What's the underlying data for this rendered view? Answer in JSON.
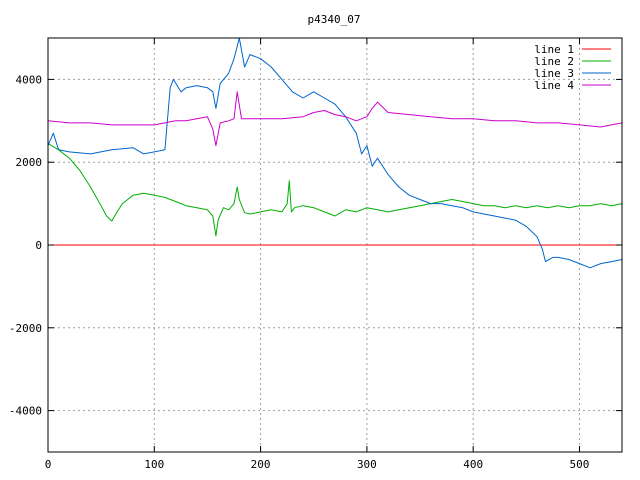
{
  "chart_data": {
    "type": "line",
    "title": "p4340_07",
    "xlabel": "",
    "ylabel": "",
    "xlim": [
      0,
      540
    ],
    "ylim": [
      -5000,
      5000
    ],
    "x_ticks": [
      0,
      100,
      200,
      300,
      400,
      500
    ],
    "y_ticks": [
      -4000,
      -2000,
      0,
      2000,
      4000
    ],
    "grid": true,
    "legend_position": "top-right",
    "series": [
      {
        "name": "line 1",
        "color": "#ff0000",
        "x": [
          0,
          540
        ],
        "y": [
          0,
          0
        ]
      },
      {
        "name": "line 2",
        "color": "#00b000",
        "x": [
          0,
          10,
          20,
          30,
          40,
          50,
          55,
          60,
          65,
          70,
          80,
          90,
          100,
          110,
          120,
          130,
          140,
          150,
          155,
          158,
          160,
          165,
          170,
          175,
          178,
          180,
          185,
          190,
          200,
          210,
          220,
          225,
          227,
          229,
          232,
          240,
          250,
          260,
          270,
          280,
          290,
          300,
          310,
          320,
          330,
          340,
          350,
          360,
          370,
          380,
          390,
          400,
          410,
          420,
          430,
          440,
          450,
          460,
          470,
          480,
          490,
          500,
          510,
          520,
          530,
          540
        ],
        "y": [
          2450,
          2300,
          2100,
          1800,
          1400,
          950,
          700,
          580,
          800,
          1000,
          1200,
          1250,
          1200,
          1150,
          1050,
          950,
          900,
          850,
          700,
          220,
          600,
          900,
          850,
          1000,
          1400,
          1100,
          780,
          750,
          800,
          850,
          800,
          1000,
          1550,
          800,
          900,
          950,
          900,
          800,
          700,
          850,
          800,
          900,
          850,
          800,
          850,
          900,
          950,
          1000,
          1050,
          1100,
          1050,
          1000,
          950,
          950,
          900,
          950,
          900,
          950,
          900,
          950,
          900,
          950,
          950,
          1000,
          950,
          1000
        ]
      },
      {
        "name": "line 3",
        "color": "#0066cc",
        "x": [
          0,
          5,
          10,
          20,
          40,
          60,
          80,
          90,
          100,
          110,
          115,
          118,
          125,
          130,
          140,
          150,
          155,
          158,
          162,
          170,
          175,
          180,
          185,
          190,
          200,
          210,
          220,
          230,
          240,
          250,
          260,
          270,
          280,
          290,
          295,
          300,
          305,
          310,
          320,
          330,
          340,
          350,
          360,
          370,
          380,
          390,
          400,
          410,
          420,
          430,
          440,
          450,
          460,
          465,
          468,
          475,
          480,
          490,
          500,
          510,
          520,
          530,
          540
        ],
        "y": [
          2400,
          2700,
          2300,
          2250,
          2200,
          2300,
          2350,
          2200,
          2250,
          2300,
          3800,
          4000,
          3700,
          3800,
          3850,
          3800,
          3700,
          3300,
          3900,
          4150,
          4500,
          5000,
          4300,
          4600,
          4500,
          4300,
          4000,
          3700,
          3550,
          3700,
          3550,
          3400,
          3100,
          2700,
          2200,
          2400,
          1900,
          2100,
          1700,
          1400,
          1200,
          1100,
          1000,
          1000,
          950,
          900,
          800,
          750,
          700,
          650,
          600,
          450,
          200,
          -100,
          -400,
          -300,
          -300,
          -350,
          -450,
          -550,
          -450,
          -400,
          -350
        ]
      },
      {
        "name": "line 4",
        "color": "#cc00cc",
        "x": [
          0,
          20,
          40,
          60,
          80,
          100,
          110,
          120,
          130,
          140,
          150,
          155,
          158,
          162,
          170,
          175,
          178,
          182,
          190,
          200,
          220,
          240,
          250,
          260,
          270,
          280,
          290,
          300,
          305,
          310,
          320,
          340,
          360,
          380,
          400,
          420,
          440,
          460,
          480,
          500,
          520,
          530,
          540
        ],
        "y": [
          3000,
          2950,
          2950,
          2900,
          2900,
          2900,
          2950,
          3000,
          3000,
          3050,
          3100,
          2800,
          2400,
          2950,
          3000,
          3050,
          3700,
          3050,
          3050,
          3050,
          3050,
          3100,
          3200,
          3250,
          3150,
          3100,
          3000,
          3100,
          3300,
          3450,
          3200,
          3150,
          3100,
          3050,
          3050,
          3000,
          3000,
          2950,
          2950,
          2900,
          2850,
          2900,
          2950
        ]
      }
    ]
  }
}
